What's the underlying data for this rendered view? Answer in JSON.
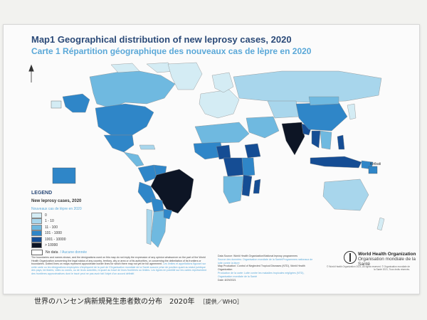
{
  "title_en": "Map1 Geographical distribution of new leprosy cases, 2020",
  "title_fr": "Carte 1 Répartition géographique des nouveaux cas de lèpre en 2020",
  "map_labels": {
    "kiribati": "Kiribati"
  },
  "legend": {
    "heading": "LEGEND",
    "subtitle_en": "New leprosy cases, 2020",
    "subtitle_fr": "Nouveaux cas de lèpre en 2020",
    "classes": [
      {
        "label": "0",
        "color": "#d4ecf4"
      },
      {
        "label": "1 - 10",
        "color": "#a8d6ec"
      },
      {
        "label": "11 - 100",
        "color": "#6fb9e0"
      },
      {
        "label": "101 - 1000",
        "color": "#2f86c8"
      },
      {
        "label": "1001 - 10000",
        "color": "#154d94"
      },
      {
        "label": "> 10000",
        "color": "#0d1525"
      }
    ],
    "no_data_en": "No data",
    "no_data_fr": "/ Aucune donnée"
  },
  "disclaimer_en": "The boundaries and names shown, and the designations used on this map do not imply the expression of any opinion whatsoever on the part of the World Health Organization concerning the legal status of any country, territory, city or area or of its authorities, or concerning the delimitation of its frontiers or boundaries. Dotted lines on maps represent approximate border lines for which there may not yet be full agreement.",
  "disclaimer_fr": "Les limites et appellations figurant sur cette carte ou les désignations employées n'impliquent de la part de l'Organisation mondiale de la Santé aucune prise de position quant au statut juridique des pays, territoires, villes ou zones, ou de leurs autorités, ni quant au tracé de leurs frontières ou limites. Les lignes en pointillé sur les cartes représentent des frontières approximatives dont le tracé peut ne pas avoir fait l'objet d'un accord définitif.",
  "source_en": "Data Source: World Health Organization/National leprosy programmes",
  "source_fr": "Source des données: Organisation mondiale de la Santé/Programmes nationaux de lutte contre la lèpre",
  "production_en": "Map Production: Control of Neglected Tropical Diseases (NTD), World Health Organization",
  "production_fr": "Production de la carte: Lutte contre les maladies tropicales négligées (NTD), Organisation mondiale de la Santé",
  "date": "Date: 8/29/2021",
  "who_en": "World Health Organization",
  "who_fr": "Organisation mondiale de la Santé",
  "copyright": "© World Health Organization 2021, All rights reserved. © Organisation mondiale de la Santé 2021, Tous droits réservés.",
  "caption": "世界のハンセン病新規発生患者数の分布　2020年",
  "caption_credit": "［提供／WHO］"
}
